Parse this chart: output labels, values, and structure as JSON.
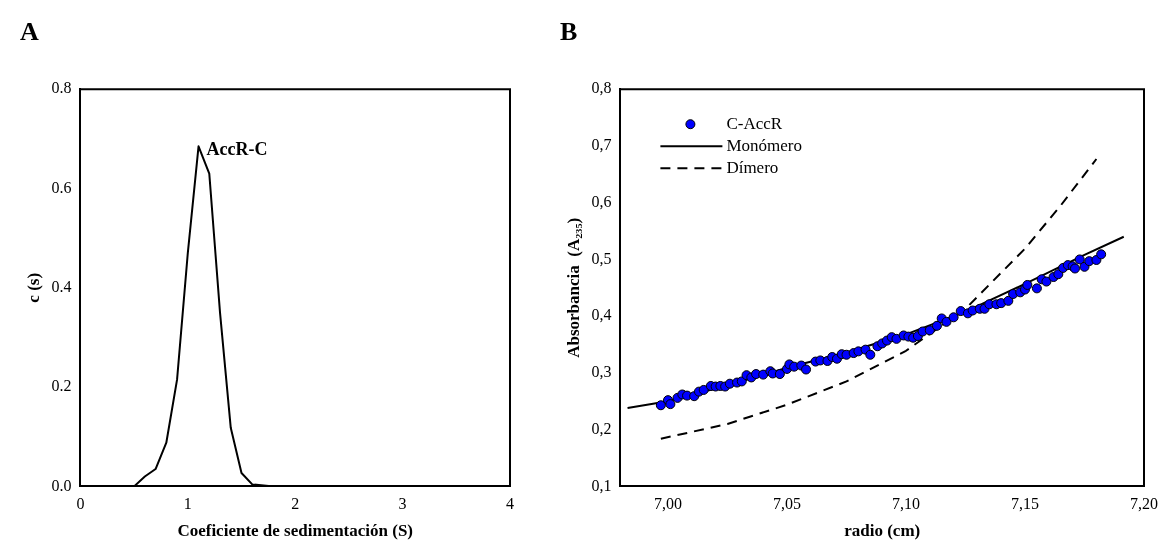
{
  "chart_data": [
    {
      "type": "line",
      "title": "A",
      "xlabel": "Coeficiente de sedimentación (S)",
      "ylabel": "c (s)",
      "color": "#000000",
      "x": [
        0,
        0.5,
        0.6,
        0.7,
        0.8,
        0.9,
        1.0,
        1.1,
        1.2,
        1.3,
        1.4,
        1.5,
        1.6,
        1.8,
        4
      ],
      "values": [
        0,
        0,
        0.02,
        0.035,
        0.088,
        0.215,
        0.47,
        0.685,
        0.63,
        0.35,
        0.118,
        0.027,
        0.004,
        0,
        0.001
      ],
      "xlim": [
        0,
        4
      ],
      "xticks": [
        0,
        1,
        2,
        3,
        4
      ],
      "ylim": [
        0,
        0.8
      ],
      "yticks": [
        {
          "value": 0,
          "label": "0.0"
        },
        0.2,
        0.4,
        0.6,
        0.8
      ],
      "annotations": [
        {
          "text": "AccR-C",
          "x": 1.1,
          "y": 0.685
        }
      ],
      "grid": false
    },
    {
      "type": "scatter",
      "title": "B",
      "xlabel": "radio (cm)",
      "ylabel": "Absorbancia  (A₂₃₅)",
      "legend": "top left",
      "xlim": [
        6.98,
        7.2
      ],
      "xticks": [
        {
          "value": 7.0,
          "label": "7,00"
        },
        {
          "value": 7.05,
          "label": "7,05"
        },
        {
          "value": 7.1,
          "label": "7,10"
        },
        {
          "value": 7.15,
          "label": "7,15"
        },
        {
          "value": 7.2,
          "label": "7,20"
        }
      ],
      "ylim": [
        0.1,
        0.8
      ],
      "yticks": [
        {
          "value": 0.1,
          "label": "0,1"
        },
        {
          "value": 0.2,
          "label": "0,2"
        },
        {
          "value": 0.3,
          "label": "0,3"
        },
        {
          "value": 0.4,
          "label": "0,4"
        },
        {
          "value": 0.5,
          "label": "0,5"
        },
        {
          "value": 0.6,
          "label": "0,6"
        },
        {
          "value": 0.7,
          "label": "0,7"
        },
        {
          "value": 0.8,
          "label": "0,8"
        }
      ],
      "grid": false,
      "series": [
        {
          "name": "C-AccR",
          "marker": "circle",
          "color": "#0000ff",
          "x": [
            6.997,
            7.0,
            7.001,
            7.004,
            7.006,
            7.008,
            7.011,
            7.013,
            7.015,
            7.018,
            7.02,
            7.022,
            7.024,
            7.026,
            7.029,
            7.031,
            7.033,
            7.035,
            7.037,
            7.04,
            7.043,
            7.044,
            7.047,
            7.05,
            7.051,
            7.053,
            7.056,
            7.058,
            7.062,
            7.064,
            7.067,
            7.069,
            7.071,
            7.073,
            7.075,
            7.078,
            7.08,
            7.083,
            7.085,
            7.088,
            7.09,
            7.092,
            7.094,
            7.096,
            7.099,
            7.101,
            7.103,
            7.105,
            7.107,
            7.11,
            7.113,
            7.115,
            7.117,
            7.12,
            7.123,
            7.126,
            7.128,
            7.131,
            7.133,
            7.135,
            7.138,
            7.14,
            7.143,
            7.145,
            7.148,
            7.15,
            7.151,
            7.155,
            7.157,
            7.159,
            7.162,
            7.164,
            7.166,
            7.168,
            7.17,
            7.171,
            7.173,
            7.175,
            7.177,
            7.18,
            7.182
          ],
          "values": [
            0.243,
            0.252,
            0.245,
            0.256,
            0.262,
            0.26,
            0.259,
            0.267,
            0.27,
            0.277,
            0.276,
            0.277,
            0.276,
            0.281,
            0.283,
            0.285,
            0.296,
            0.292,
            0.298,
            0.297,
            0.303,
            0.299,
            0.298,
            0.307,
            0.315,
            0.311,
            0.313,
            0.306,
            0.32,
            0.322,
            0.321,
            0.328,
            0.325,
            0.333,
            0.332,
            0.335,
            0.338,
            0.341,
            0.332,
            0.347,
            0.352,
            0.357,
            0.363,
            0.36,
            0.366,
            0.364,
            0.362,
            0.365,
            0.373,
            0.375,
            0.383,
            0.396,
            0.39,
            0.398,
            0.409,
            0.405,
            0.41,
            0.413,
            0.413,
            0.421,
            0.421,
            0.423,
            0.427,
            0.439,
            0.442,
            0.447,
            0.455,
            0.449,
            0.465,
            0.461,
            0.469,
            0.474,
            0.485,
            0.49,
            0.488,
            0.484,
            0.5,
            0.487,
            0.497,
            0.499,
            0.509
          ]
        },
        {
          "name": "Monómero",
          "type": "line",
          "marker": "none",
          "line_style": "solid",
          "color": "#000000",
          "x": [
            6.983,
            7.0,
            7.025,
            7.05,
            7.075,
            7.1,
            7.125,
            7.15,
            7.175,
            7.1915
          ],
          "values": [
            0.238,
            0.25,
            0.278,
            0.309,
            0.336,
            0.368,
            0.408,
            0.457,
            0.508,
            0.54
          ]
        },
        {
          "name": "Dímero",
          "type": "line",
          "marker": "none",
          "line_style": "dashed",
          "color": "#000000",
          "x": [
            6.997,
            7.025,
            7.05,
            7.075,
            7.1,
            7.125,
            7.15,
            7.165,
            7.18
          ],
          "values": [
            0.184,
            0.21,
            0.244,
            0.285,
            0.339,
            0.413,
            0.519,
            0.595,
            0.677
          ]
        }
      ]
    }
  ]
}
